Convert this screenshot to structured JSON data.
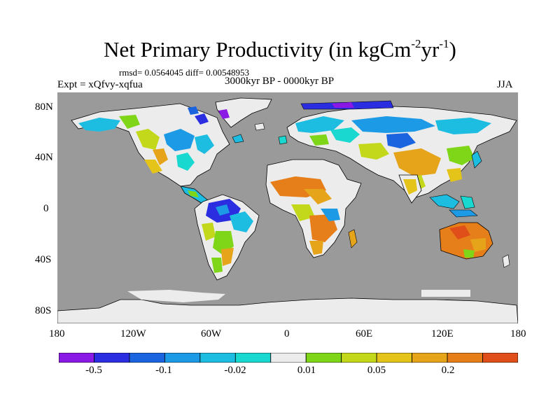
{
  "title": {
    "text": "Net Primary Productivity (in kgCm",
    "sup1": "-2",
    "mid": "yr",
    "sup2": "-1",
    "end": ")"
  },
  "stats": "rmsd= 0.0564045 diff= 0.00548953",
  "subtitle": {
    "left": "Expt = xQfvy-xqfua",
    "center": "3000kyr BP - 0000kyr BP",
    "right": "JJA"
  },
  "axes": {
    "y_ticks": [
      "80N",
      "40N",
      "0",
      "40S",
      "80S"
    ],
    "x_ticks": [
      "180",
      "120W",
      "60W",
      "0",
      "60E",
      "120E",
      "180"
    ]
  },
  "colorbar": {
    "colors": [
      "#8a19e6",
      "#2a2ee0",
      "#1a64e0",
      "#1c9ae6",
      "#1cbde0",
      "#19d8d0",
      "#ececec",
      "#7fd619",
      "#c3d81b",
      "#e5c41a",
      "#e6a41a",
      "#e67f1a",
      "#e04e19"
    ],
    "labels": [
      "-0.5",
      "-0.1",
      "-0.02",
      "0.01",
      "0.05",
      "0.2"
    ]
  },
  "palette": {
    "ocean": "#9a9a9a",
    "ice": "#ececec",
    "coast": "#000000"
  }
}
